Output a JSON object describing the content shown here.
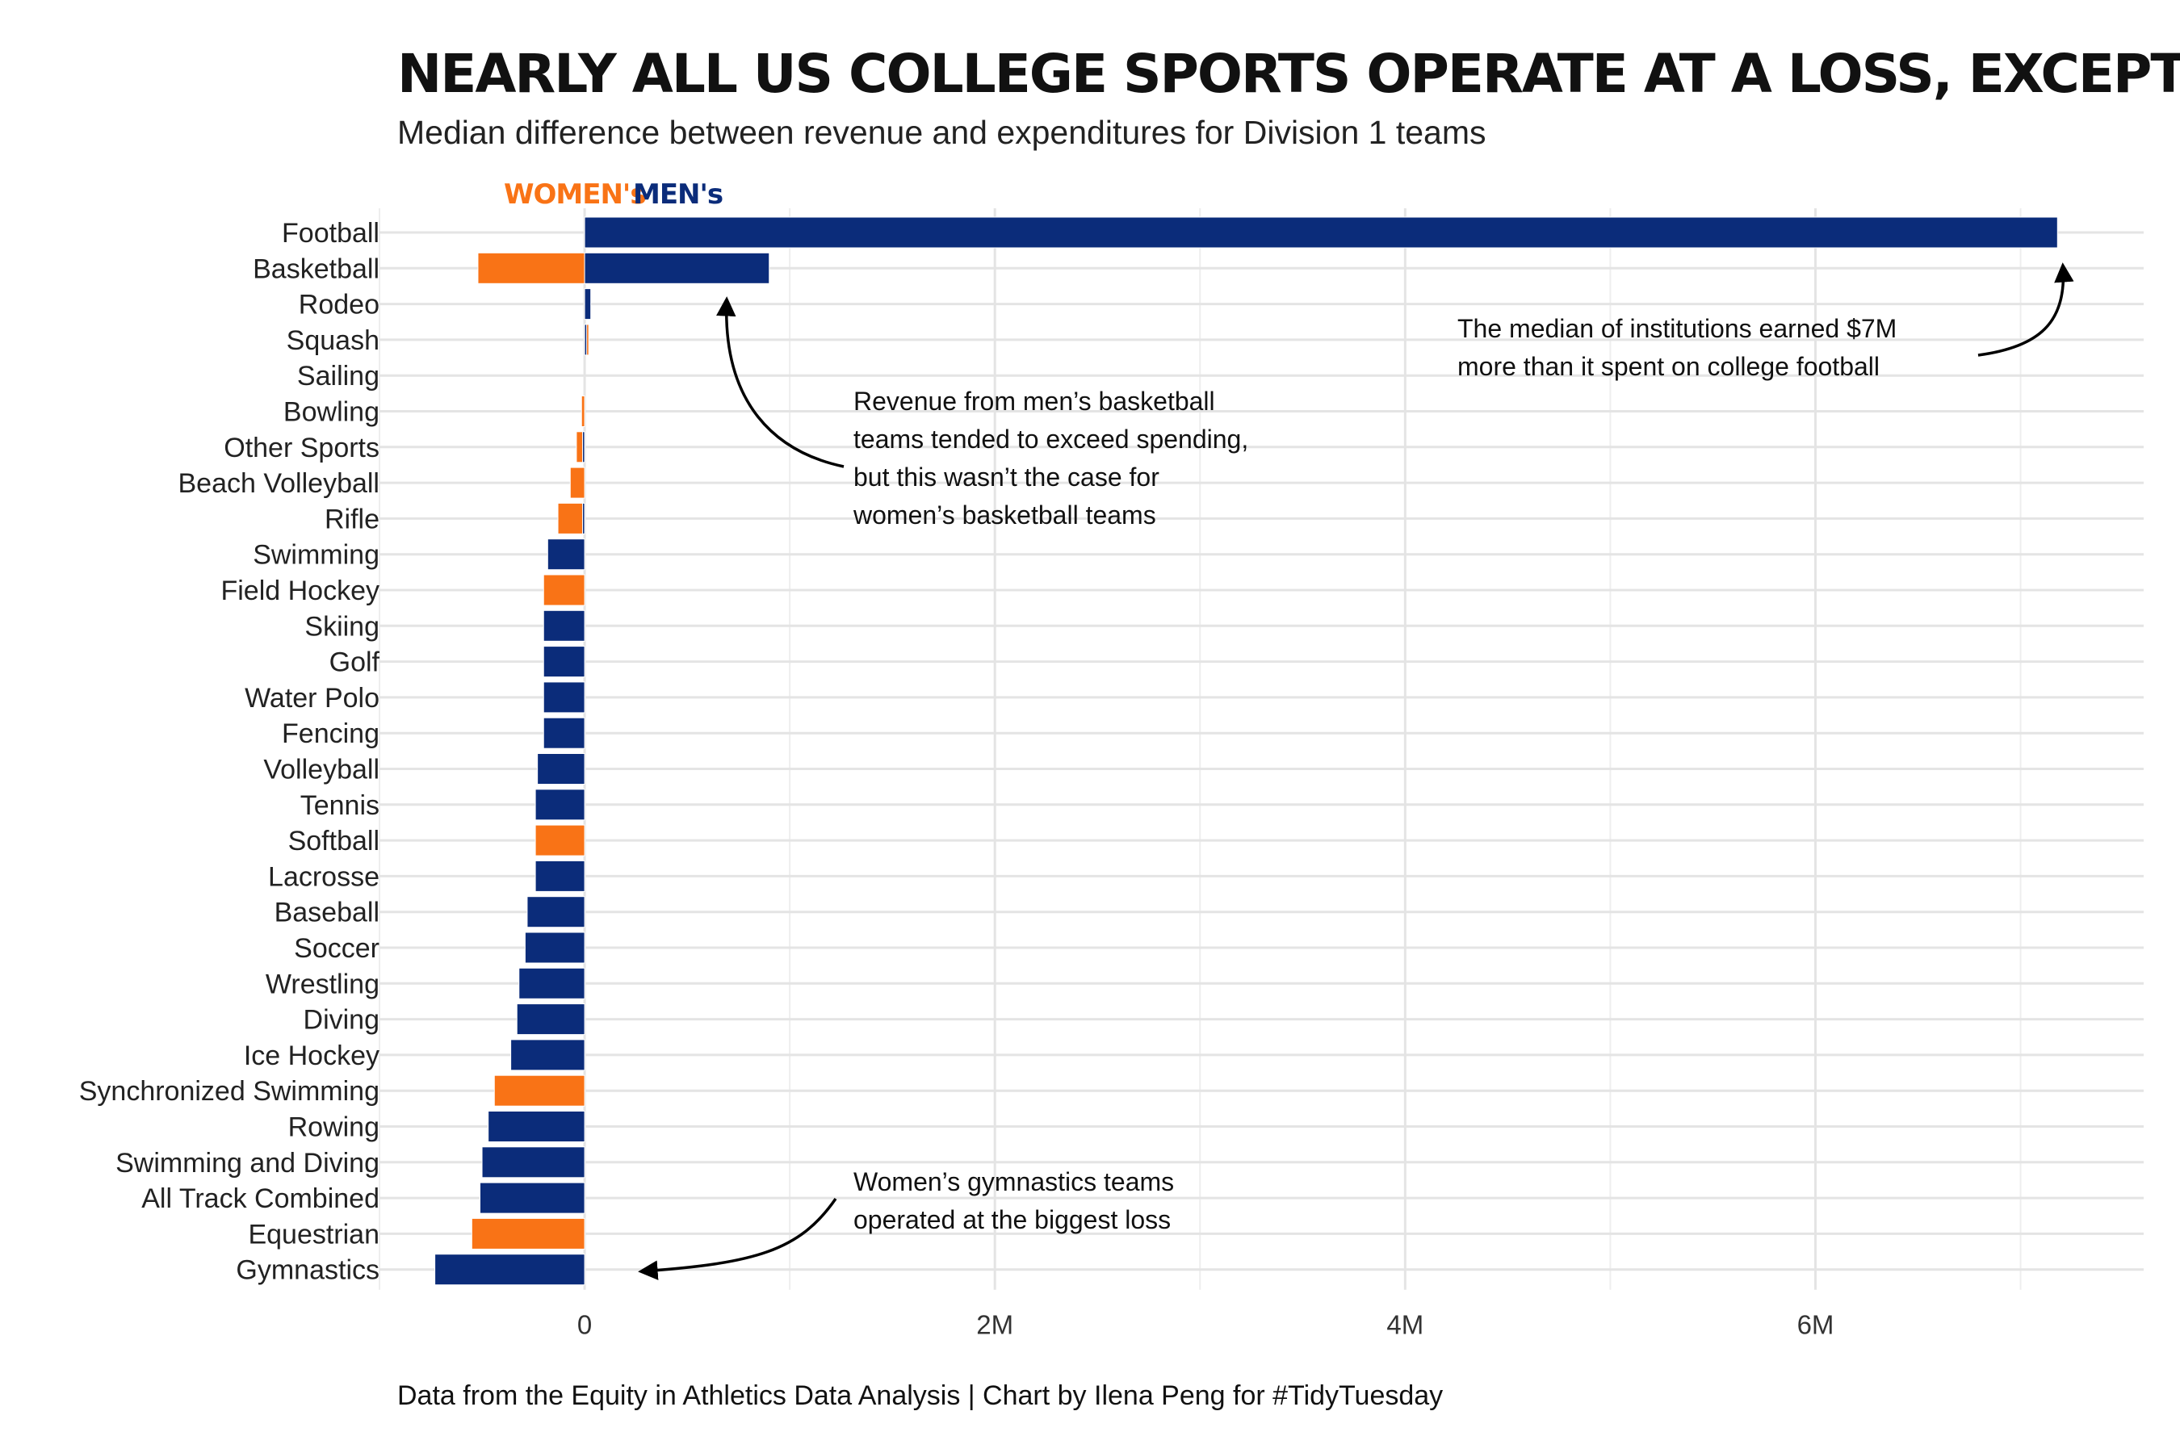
{
  "title": "NEARLY ALL US COLLEGE SPORTS OPERATE AT A LOSS, EXCEPT FOR FOOTBALL",
  "subtitle": "Median difference between revenue and expenditures for Division 1 teams",
  "caption": "Data from the Equity in Athletics Data Analysis | Chart by Ilena Peng for #TidyTuesday",
  "legend": {
    "womens": "WOMEN's",
    "mens": "MEN's"
  },
  "colors": {
    "womens": "#F97316",
    "mens": "#0B2C7A"
  },
  "annotations": {
    "basketball": [
      "Revenue from men’s basketball",
      "teams tended to exceed spending,",
      "but this wasn’t the case for",
      "women’s basketball teams"
    ],
    "football": [
      "The median of institutions earned $7M",
      "more than it spent on college football"
    ],
    "gymnastics": [
      "Women’s gymnastics teams",
      "operated at the biggest loss"
    ]
  },
  "chart_data": {
    "type": "bar",
    "orientation": "horizontal",
    "xlim": [
      -1000000,
      7600000
    ],
    "x_ticks": [
      0,
      2000000,
      4000000,
      6000000
    ],
    "x_tick_labels": [
      "0",
      "2M",
      "4M",
      "6M"
    ],
    "grid": true,
    "legend_position": "top-left",
    "categories": [
      "Football",
      "Basketball",
      "Rodeo",
      "Squash",
      "Sailing",
      "Bowling",
      "Other Sports",
      "Beach Volleyball",
      "Rifle",
      "Swimming",
      "Field Hockey",
      "Skiing",
      "Golf",
      "Water Polo",
      "Fencing",
      "Volleyball",
      "Tennis",
      "Softball",
      "Lacrosse",
      "Baseball",
      "Soccer",
      "Wrestling",
      "Diving",
      "Ice Hockey",
      "Synchronized Swimming",
      "Rowing",
      "Swimming and Diving",
      "All Track Combined",
      "Equestrian",
      "Gymnastics"
    ],
    "series": [
      {
        "name": "WOMEN's",
        "values": [
          null,
          -520000,
          null,
          20000,
          0,
          -15000,
          -40000,
          -70000,
          -130000,
          -100000,
          -200000,
          -100000,
          -100000,
          -100000,
          -110000,
          -220000,
          -130000,
          -240000,
          -160000,
          null,
          -210000,
          null,
          -180000,
          -230000,
          -440000,
          -410000,
          -290000,
          -260000,
          -550000,
          -600000
        ]
      },
      {
        "name": "MEN's",
        "values": [
          7180000,
          900000,
          30000,
          10000,
          null,
          null,
          -10000,
          null,
          -10000,
          -180000,
          null,
          -200000,
          -200000,
          -200000,
          -200000,
          -230000,
          -240000,
          null,
          -240000,
          -280000,
          -290000,
          -320000,
          -330000,
          -360000,
          null,
          -470000,
          -500000,
          -510000,
          null,
          -730000
        ]
      }
    ]
  }
}
